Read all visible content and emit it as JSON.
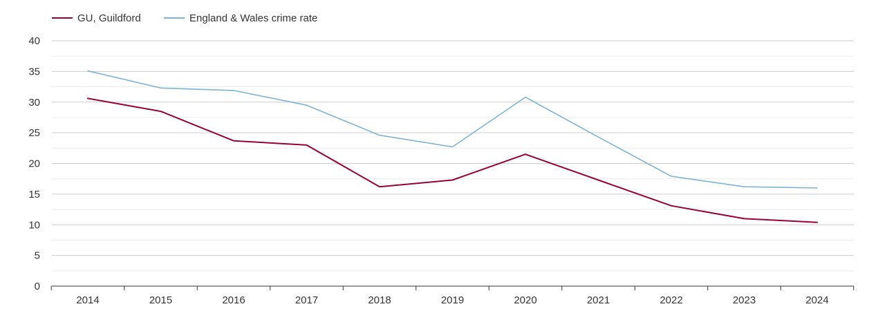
{
  "chart_data": {
    "type": "line",
    "title": "",
    "xlabel": "",
    "ylabel": "",
    "categories": [
      "2014",
      "2015",
      "2016",
      "2017",
      "2018",
      "2019",
      "2020",
      "2021",
      "2022",
      "2023",
      "2024"
    ],
    "series": [
      {
        "name": "GU, Guildford",
        "color": "#990033",
        "values": [
          30.6,
          28.5,
          23.7,
          23.0,
          16.2,
          17.3,
          21.5,
          17.3,
          13.1,
          11.0,
          10.4
        ]
      },
      {
        "name": "England & Wales crime rate",
        "color": "#7db3d4",
        "values": [
          35.1,
          32.3,
          31.9,
          29.5,
          24.6,
          22.7,
          30.8,
          24.3,
          17.9,
          16.2,
          16.0
        ]
      }
    ],
    "ylim": [
      0,
      40
    ],
    "yticks": [
      0,
      5,
      10,
      15,
      20,
      25,
      30,
      35,
      40
    ],
    "grid": true,
    "legend": "top-left"
  }
}
